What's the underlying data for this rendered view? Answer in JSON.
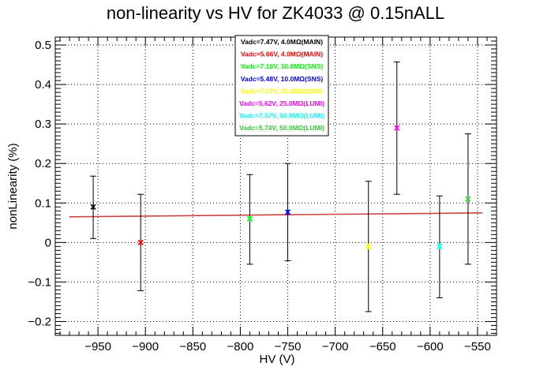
{
  "chart_data": {
    "type": "scatter",
    "title": "non-linearity vs HV for ZK4033 @ 0.15nALL",
    "xlabel": "HV (V)",
    "ylabel": "nonLinearity (%)",
    "xlim": [
      -995,
      -530
    ],
    "ylim": [
      -0.235,
      0.52
    ],
    "x_ticks": [
      -950,
      -900,
      -850,
      -800,
      -750,
      -700,
      -650,
      -600,
      -550
    ],
    "y_ticks": [
      -0.2,
      -0.1,
      0,
      0.1,
      0.2,
      0.3,
      0.4,
      0.5
    ],
    "x_tick_labels": [
      "−950",
      "−900",
      "−850",
      "−800",
      "−750",
      "−700",
      "−650",
      "−600",
      "−550"
    ],
    "y_tick_labels": [
      "−0.2",
      "−0.1",
      "0",
      "0.1",
      "0.2",
      "0.3",
      "0.4",
      "0.5"
    ],
    "grid": true,
    "legend_position": "top-center",
    "series": [
      {
        "name": "Vadc=7.47V, 4.0MΩ(MAIN)",
        "color": "#000000",
        "x": -955,
        "y": 0.09,
        "err_low": 0.01,
        "err_high": 0.168
      },
      {
        "name": "Vadc=5.66V, 4.0MΩ(MAIN)",
        "color": "#ff0000",
        "x": -905,
        "y": 0.0,
        "err_low": -0.122,
        "err_high": 0.122
      },
      {
        "name": "Vadc=7.16V, 10.0MΩ(SNS)",
        "color": "#00ff00",
        "x": -790,
        "y": 0.06,
        "err_low": -0.055,
        "err_high": 0.172
      },
      {
        "name": "Vadc=5.48V, 10.0MΩ(SNS)",
        "color": "#0000ff",
        "x": -750,
        "y": 0.077,
        "err_low": -0.046,
        "err_high": 0.2
      },
      {
        "name": "Vadc=7.07V, 25.0MΩ(SNS)",
        "color": "#ffff00",
        "x": -665,
        "y": -0.01,
        "err_low": -0.175,
        "err_high": 0.155
      },
      {
        "name": "Vadc=5.62V, 25.0MΩ(LUMI)",
        "color": "#ff00ff",
        "x": -635,
        "y": 0.29,
        "err_low": 0.122,
        "err_high": 0.457
      },
      {
        "name": "Vadc=7.57V, 50.0MΩ(LUMI)",
        "color": "#00ffff",
        "x": -590,
        "y": -0.01,
        "err_low": -0.14,
        "err_high": 0.118
      },
      {
        "name": "Vadc=5.74V, 50.0MΩ(LUMI)",
        "color": "#33cc33",
        "x": -560,
        "y": 0.11,
        "err_low": -0.055,
        "err_high": 0.275
      }
    ],
    "fit_line": {
      "color": "#cc4444",
      "x": [
        -980,
        -545
      ],
      "y": [
        0.065,
        0.075
      ]
    }
  }
}
